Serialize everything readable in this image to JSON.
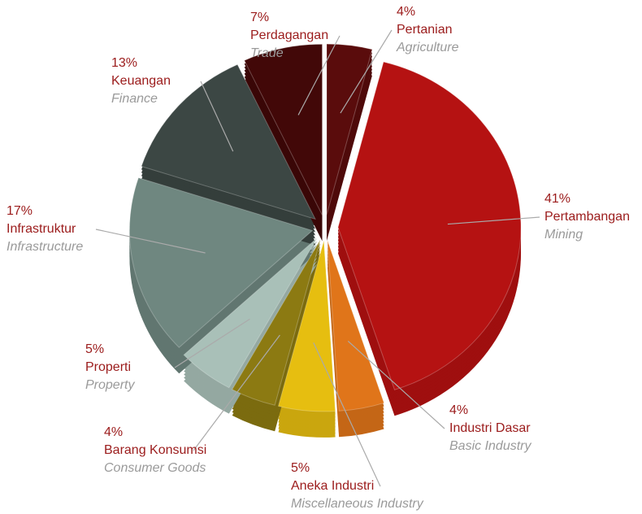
{
  "chart_data": {
    "type": "pie",
    "categories": [
      "Pertanian",
      "Pertambangan",
      "Industri Dasar",
      "Aneka Industri",
      "Barang Konsumsi",
      "Properti",
      "Infrastruktur",
      "Keuangan",
      "Perdagangan"
    ],
    "translations": [
      "Agriculture",
      "Mining",
      "Basic Industry",
      "Miscellaneous Industry",
      "Consumer Goods",
      "Property",
      "Infrastructure",
      "Finance",
      "Trade"
    ],
    "values": [
      4,
      41,
      4,
      5,
      4,
      5,
      17,
      13,
      7
    ],
    "value_labels": [
      "4%",
      "41%",
      "4%",
      "5%",
      "4%",
      "5%",
      "17%",
      "13%",
      "7%"
    ],
    "colors": [
      "#5a0c0c",
      "#b51212",
      "#e0751a",
      "#e6be10",
      "#8c7a12",
      "#a9c0b8",
      "#6f8780",
      "#3c4744",
      "#420808"
    ]
  }
}
